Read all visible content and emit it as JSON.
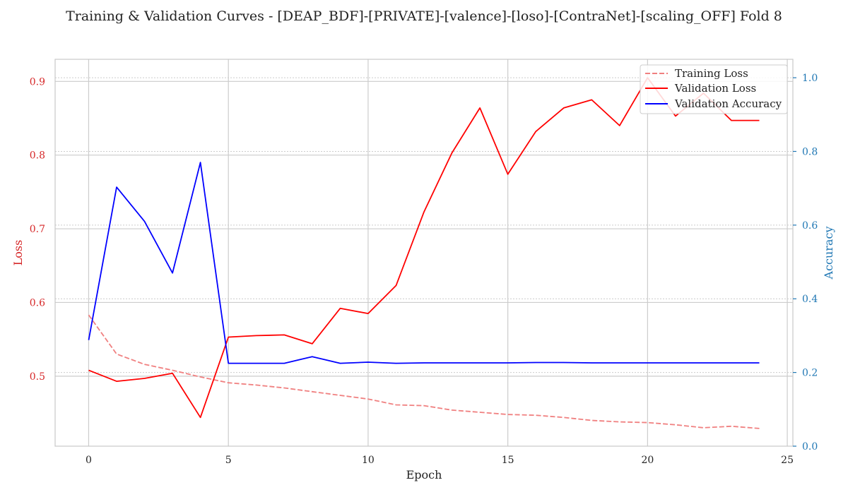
{
  "chart_data": {
    "type": "line",
    "title": "Training & Validation Curves - [DEAP_BDF]-[PRIVATE]-[valence]-[loso]-[ContraNet]-[scaling_OFF] Fold 8",
    "xlabel": "Epoch",
    "ylabel_left": "Loss",
    "ylabel_right": "Accuracy",
    "xlim": [
      -1.2,
      25.2
    ],
    "ylim_left": [
      0.405,
      0.93
    ],
    "ylim_right": [
      0.0,
      1.05
    ],
    "x_ticks": [
      "0",
      "5",
      "10",
      "15",
      "20",
      "25"
    ],
    "y_ticks_left": [
      "0.5",
      "0.6",
      "0.7",
      "0.8",
      "0.9"
    ],
    "y_ticks_right": [
      "0.0",
      "0.2",
      "0.4",
      "0.6",
      "0.8",
      "1.0"
    ],
    "grid": true,
    "legend_position": "top-right",
    "colors": {
      "training_loss": "#f08080",
      "validation_loss": "#ff0000",
      "validation_accuracy": "#0000ff",
      "loss_axis": "#d62728",
      "accuracy_axis": "#1f77b4"
    },
    "x": [
      0,
      1,
      2,
      3,
      4,
      5,
      6,
      7,
      8,
      9,
      10,
      11,
      12,
      13,
      14,
      15,
      16,
      17,
      18,
      19,
      20,
      21,
      22,
      23,
      24
    ],
    "series": [
      {
        "name": "Training Loss",
        "axis": "left",
        "style": "dashed",
        "color": "#f08080",
        "values": [
          0.583,
          0.53,
          0.516,
          0.508,
          0.499,
          0.491,
          0.488,
          0.484,
          0.479,
          0.474,
          0.469,
          0.461,
          0.46,
          0.454,
          0.451,
          0.448,
          0.447,
          0.444,
          0.44,
          0.438,
          0.437,
          0.434,
          0.43,
          0.432,
          0.429
        ]
      },
      {
        "name": "Validation Loss",
        "axis": "left",
        "style": "solid",
        "color": "#ff0000",
        "values": [
          0.508,
          0.493,
          0.497,
          0.504,
          0.444,
          0.553,
          0.555,
          0.556,
          0.544,
          0.592,
          0.585,
          0.623,
          0.723,
          0.803,
          0.864,
          0.774,
          0.832,
          0.864,
          0.875,
          0.84,
          0.905,
          0.853,
          0.884,
          0.847,
          0.847
        ]
      },
      {
        "name": "Validation Accuracy",
        "axis": "right",
        "style": "solid",
        "color": "#0000ff",
        "values": [
          0.288,
          0.703,
          0.61,
          0.47,
          0.77,
          0.225,
          0.225,
          0.225,
          0.243,
          0.225,
          0.228,
          0.225,
          0.226,
          0.226,
          0.226,
          0.226,
          0.227,
          0.227,
          0.226,
          0.226,
          0.226,
          0.226,
          0.226,
          0.226,
          0.226
        ]
      }
    ]
  }
}
